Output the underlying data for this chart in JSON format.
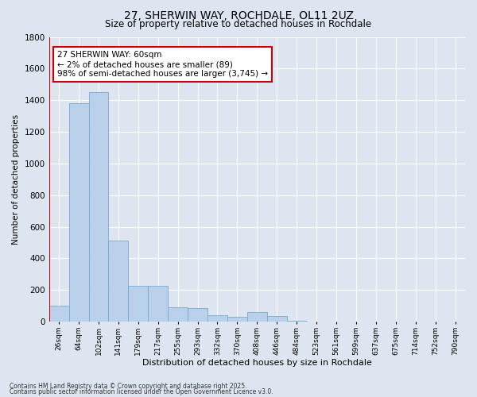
{
  "title1": "27, SHERWIN WAY, ROCHDALE, OL11 2UZ",
  "title2": "Size of property relative to detached houses in Rochdale",
  "xlabel": "Distribution of detached houses by size in Rochdale",
  "ylabel": "Number of detached properties",
  "categories": [
    "26sqm",
    "64sqm",
    "102sqm",
    "141sqm",
    "179sqm",
    "217sqm",
    "255sqm",
    "293sqm",
    "332sqm",
    "370sqm",
    "408sqm",
    "446sqm",
    "484sqm",
    "523sqm",
    "561sqm",
    "599sqm",
    "637sqm",
    "675sqm",
    "714sqm",
    "752sqm",
    "790sqm"
  ],
  "values": [
    100,
    1380,
    1450,
    510,
    225,
    225,
    90,
    85,
    40,
    30,
    60,
    35,
    5,
    0,
    0,
    0,
    0,
    0,
    0,
    0,
    0
  ],
  "bar_color": "#b8d0ea",
  "bar_edge_color": "#7ba8cc",
  "highlight_line_color": "#cc0000",
  "background_color": "#dde6f0",
  "grid_color": "#ffffff",
  "ylim": [
    0,
    1800
  ],
  "yticks": [
    0,
    200,
    400,
    600,
    800,
    1000,
    1200,
    1400,
    1600,
    1800
  ],
  "annotation_text": "27 SHERWIN WAY: 60sqm\n← 2% of detached houses are smaller (89)\n98% of semi-detached houses are larger (3,745) →",
  "annotation_box_color": "#ffffff",
  "annotation_box_edge": "#cc0000",
  "footnote1": "Contains HM Land Registry data © Crown copyright and database right 2025.",
  "footnote2": "Contains public sector information licensed under the Open Government Licence v3.0."
}
